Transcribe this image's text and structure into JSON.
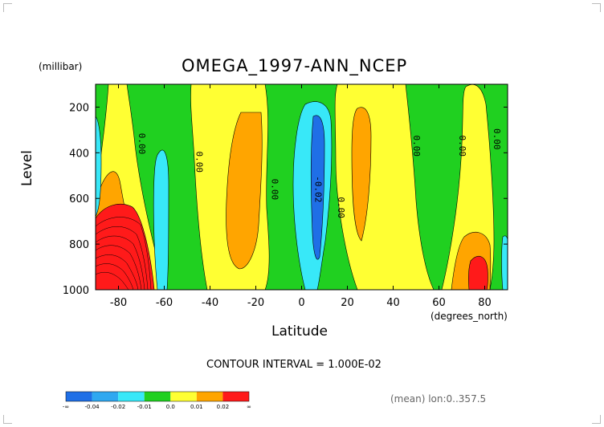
{
  "title": "OMEGA_1997-ANN_NCEP",
  "units_label": "(millibar)",
  "x_units": "(degrees_north)",
  "contour_interval": "CONTOUR INTERVAL = 1.000E-02",
  "mean_label": "(mean) lon:0..357.5",
  "chart_data": {
    "type": "heatmap",
    "title": "OMEGA_1997-ANN_NCEP",
    "xlabel": "Latitude",
    "ylabel": "Level",
    "xlim": [
      -90,
      90
    ],
    "ylim": [
      1000,
      100
    ],
    "x_ticks": [
      "-80",
      "-60",
      "-40",
      "-20",
      "0",
      "20",
      "40",
      "60",
      "80"
    ],
    "x_tick_values": [
      -80,
      -60,
      -40,
      -20,
      0,
      20,
      40,
      60,
      80
    ],
    "y_ticks": [
      "200",
      "400",
      "600",
      "800",
      "1000"
    ],
    "y_tick_values": [
      200,
      400,
      600,
      800,
      1000
    ],
    "contour_labels": [
      {
        "text": "0.00",
        "lat": -71,
        "lev": 360
      },
      {
        "text": "0.00",
        "lat": -46,
        "lev": 440
      },
      {
        "text": "0.00",
        "lat": -13,
        "lev": 560
      },
      {
        "text": "-0.02",
        "lat": 6,
        "lev": 560
      },
      {
        "text": "0.00",
        "lat": 16,
        "lev": 640
      },
      {
        "text": "0.00",
        "lat": 49,
        "lev": 370
      },
      {
        "text": "0.00",
        "lat": 69,
        "lev": 370
      },
      {
        "text": "0.00",
        "lat": 84,
        "lev": 340
      }
    ],
    "legend": {
      "levels": [
        "-∞",
        "-0.04",
        "-0.02",
        "-0.01",
        "0.0",
        "0.01",
        "0.02",
        "∞"
      ],
      "colors": [
        "#1f6fe6",
        "#2fa8f0",
        "#38e8f8",
        "#20d020",
        "#ffff33",
        "#ffa500",
        "#ff1a1a"
      ]
    }
  }
}
